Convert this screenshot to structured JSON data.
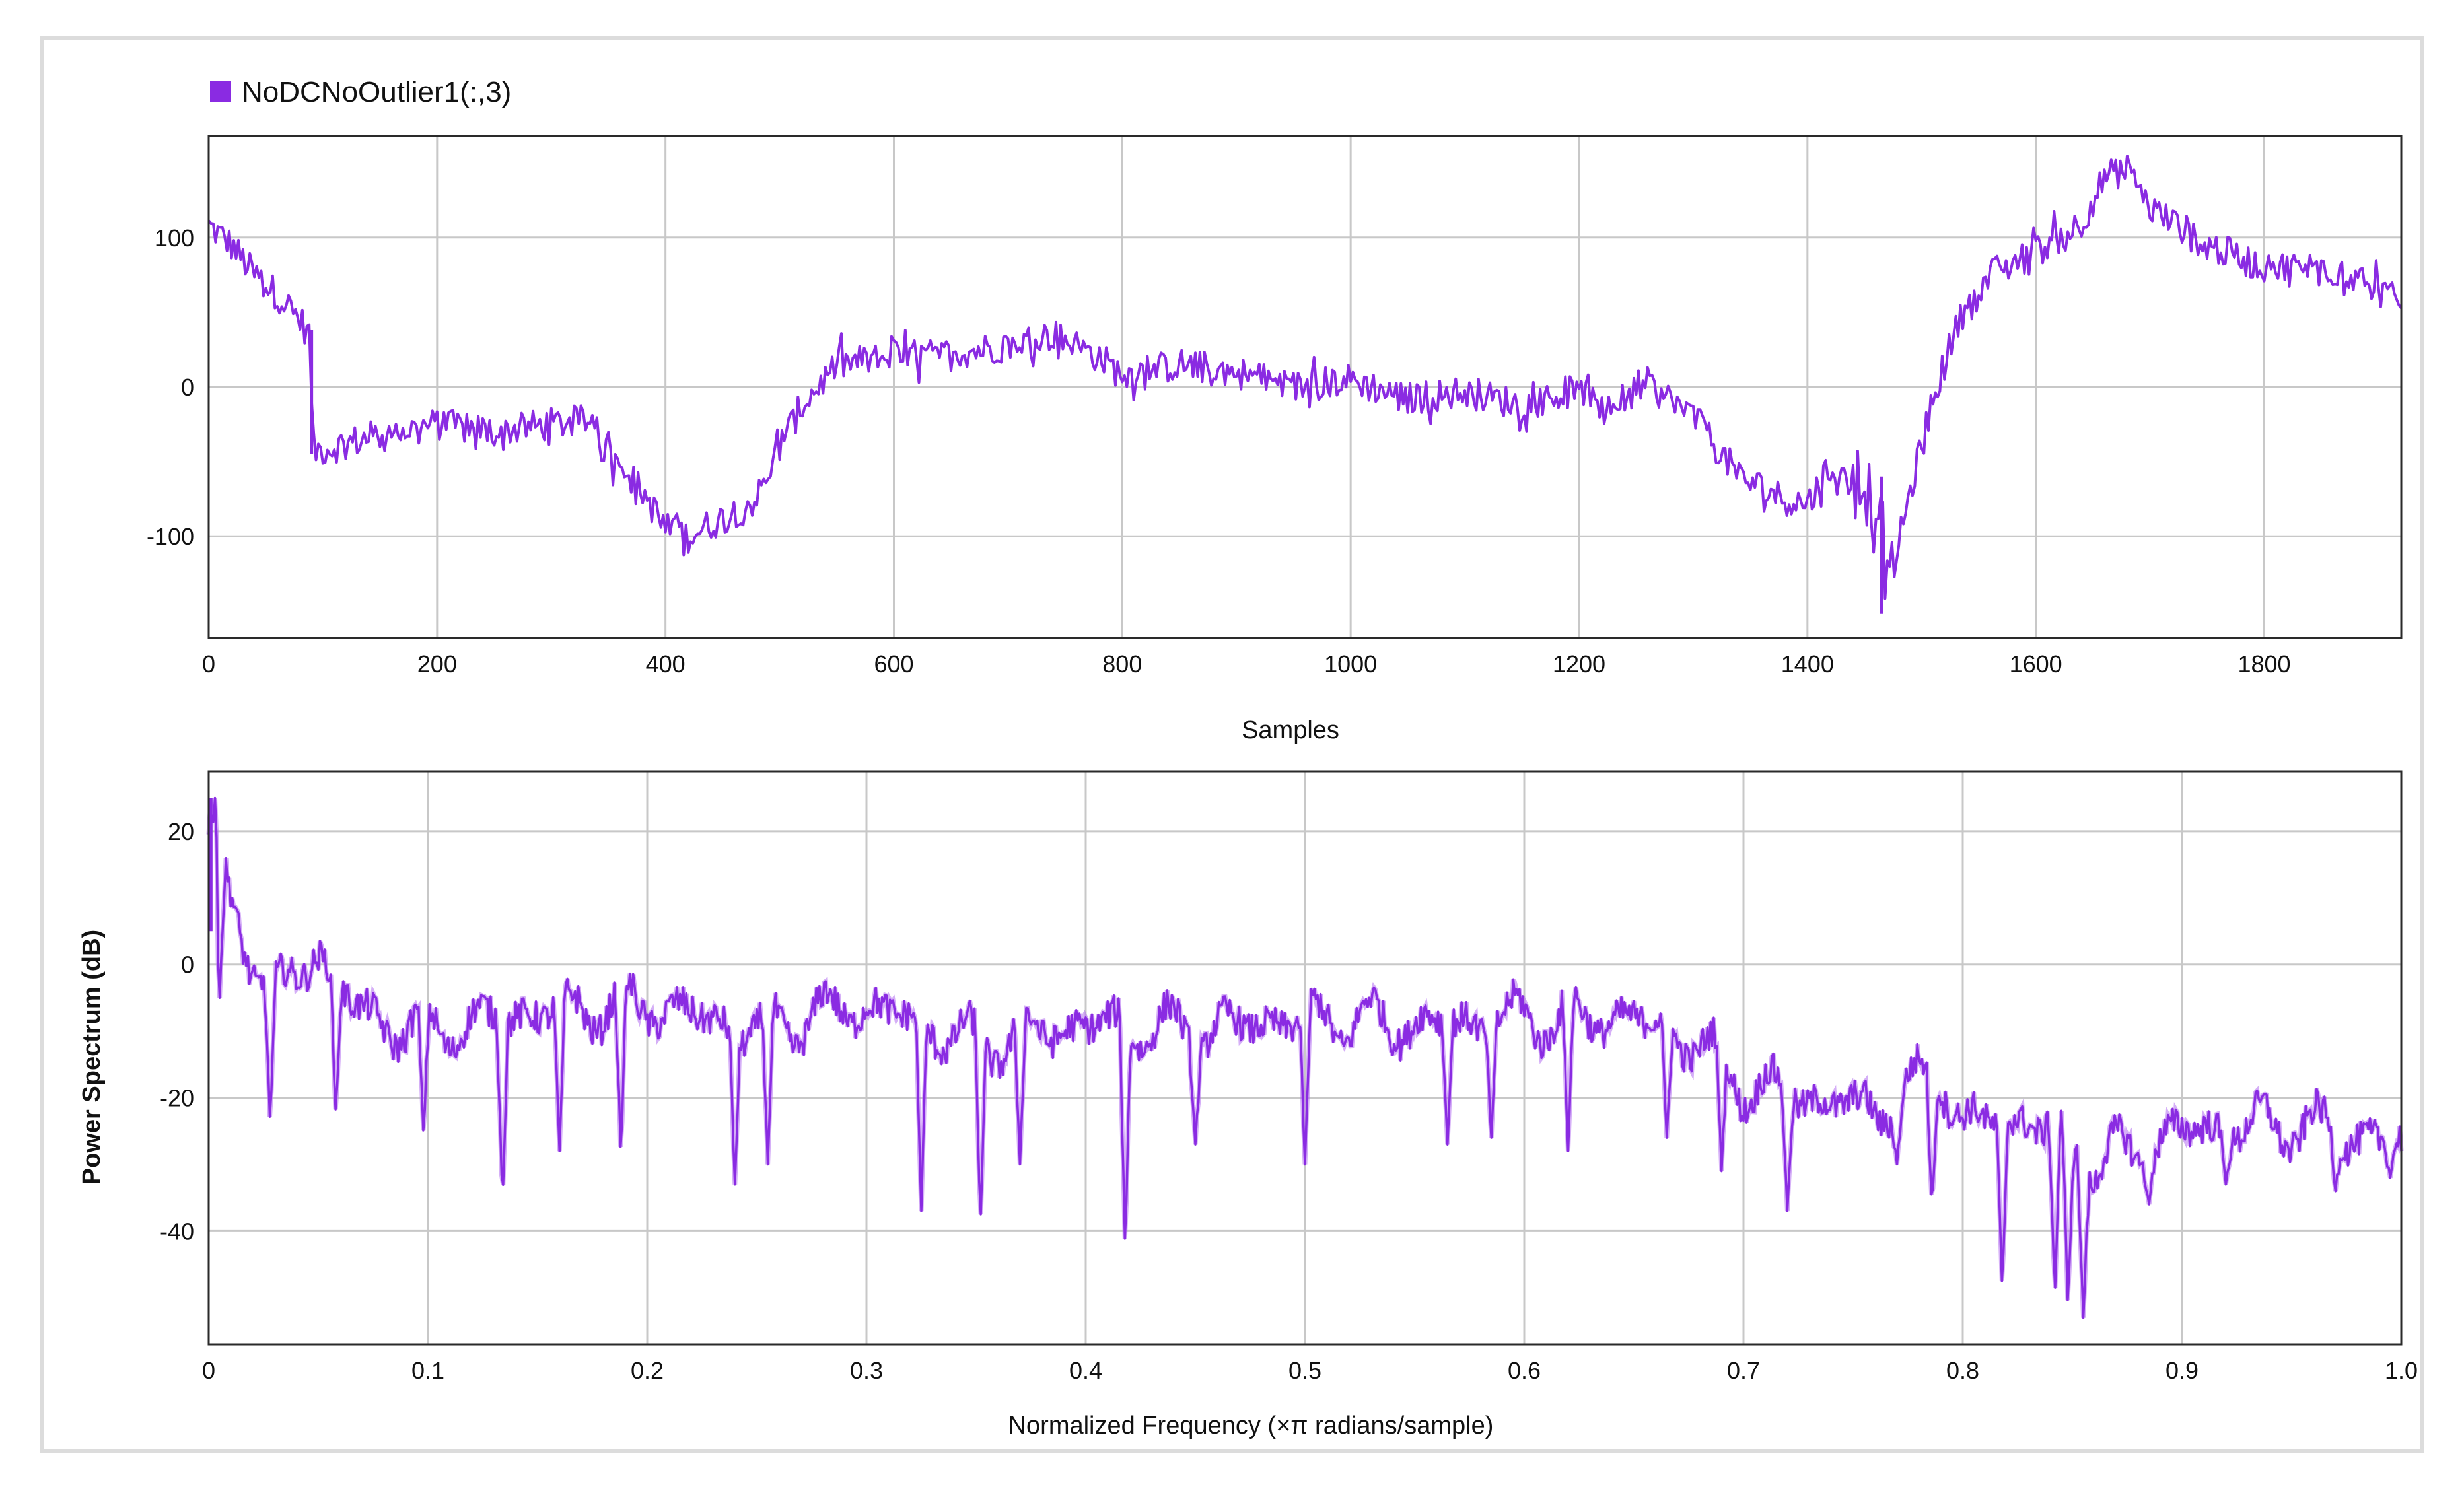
{
  "colors": {
    "series": "#8a2be2",
    "series_light": "#b36ef0",
    "grid": "#c8c8c8",
    "axis": "#2a2a2a"
  },
  "chart_data": [
    {
      "type": "line",
      "legend": [
        "NoDCNoOutlier1(:,3)"
      ],
      "legend_placement": "top-left",
      "title": "",
      "xlabel": "Samples",
      "ylabel": "",
      "xlim": [
        0,
        1920
      ],
      "ylim": [
        -168,
        168
      ],
      "grid": true,
      "xticks": [
        0,
        200,
        400,
        600,
        800,
        1000,
        1200,
        1400,
        1600,
        1800
      ],
      "yticks": [
        -100,
        0,
        100
      ],
      "x": [
        0,
        20,
        40,
        60,
        80,
        88,
        92,
        100,
        150,
        200,
        250,
        300,
        340,
        345,
        380,
        400,
        420,
        450,
        480,
        500,
        520,
        550,
        600,
        650,
        700,
        740,
        780,
        800,
        850,
        900,
        950,
        1000,
        1050,
        1100,
        1150,
        1200,
        1220,
        1260,
        1300,
        1340,
        1380,
        1400,
        1420,
        1440,
        1455,
        1465,
        1470,
        1490,
        1510,
        1530,
        1560,
        1600,
        1640,
        1660,
        1680,
        1700,
        1750,
        1800,
        1840,
        1880,
        1920
      ],
      "y": [
        108,
        95,
        75,
        62,
        45,
        35,
        -42,
        -42,
        -32,
        -25,
        -30,
        -25,
        -22,
        -40,
        -70,
        -95,
        -100,
        -88,
        -75,
        -40,
        -12,
        15,
        20,
        22,
        28,
        35,
        20,
        8,
        15,
        10,
        0,
        5,
        -8,
        -3,
        -12,
        -2,
        -18,
        2,
        -20,
        -60,
        -75,
        -78,
        -55,
        -65,
        -70,
        -85,
        -140,
        -70,
        -10,
        40,
        75,
        90,
        110,
        140,
        145,
        120,
        95,
        80,
        80,
        75,
        55
      ]
    },
    {
      "type": "line",
      "title": "",
      "xlabel": "Normalized Frequency (×π radians/sample)",
      "ylabel": "Power Spectrum (dB)",
      "xlim": [
        0,
        1
      ],
      "ylim": [
        -57,
        29
      ],
      "grid": true,
      "xticks": [
        0,
        0.1,
        0.2,
        0.3,
        0.4,
        0.5,
        0.6,
        0.7,
        0.8,
        0.9,
        1.0
      ],
      "xtick_labels": [
        "0",
        "0.1",
        "0.2",
        "0.3",
        "0.4",
        "0.5",
        "0.6",
        "0.7",
        "0.8",
        "0.9",
        "1.0"
      ],
      "yticks": [
        -40,
        -20,
        0,
        20
      ],
      "x": [
        0,
        0.003,
        0.008,
        0.015,
        0.03,
        0.05,
        0.07,
        0.1,
        0.15,
        0.2,
        0.25,
        0.3,
        0.35,
        0.4,
        0.45,
        0.5,
        0.55,
        0.6,
        0.65,
        0.68,
        0.7,
        0.73,
        0.76,
        0.79,
        0.8,
        0.83,
        0.86,
        0.9,
        0.95,
        1.0
      ],
      "y": [
        22,
        14,
        10,
        5,
        -5,
        2,
        -8,
        -10,
        -7,
        -6,
        -10,
        -6,
        -12,
        -9,
        -10,
        -8,
        -9,
        -8,
        -8,
        -12,
        -18,
        -20,
        -22,
        -16,
        -24,
        -23,
        -30,
        -25,
        -24,
        -27
      ],
      "dips_x": [
        0.005,
        0.028,
        0.058,
        0.098,
        0.134,
        0.16,
        0.188,
        0.24,
        0.255,
        0.325,
        0.352,
        0.37,
        0.418,
        0.45,
        0.5,
        0.565,
        0.585,
        0.62,
        0.665,
        0.69,
        0.72,
        0.77,
        0.786,
        0.818,
        0.842,
        0.848,
        0.855,
        0.885,
        0.92,
        0.97,
        0.995
      ],
      "dips_y": [
        -5,
        -24,
        -23,
        -26,
        -36,
        -28,
        -29,
        -33,
        -30,
        -37,
        -39,
        -30,
        -43,
        -27,
        -30,
        -27,
        -26,
        -28,
        -26,
        -31,
        -37,
        -30,
        -37,
        -49,
        -50,
        -52,
        -53,
        -36,
        -33,
        -34,
        -32
      ]
    }
  ]
}
